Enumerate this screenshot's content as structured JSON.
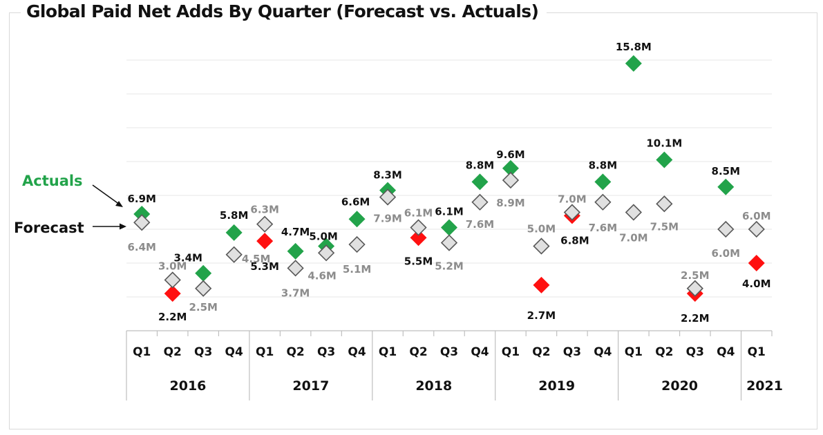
{
  "chart_data": {
    "type": "scatter",
    "title": "Global Paid Net Adds By Quarter (Forecast vs. Actuals)",
    "xlabel": "",
    "ylabel": "",
    "ylim": [
      0,
      16
    ],
    "y_gridlines": [
      2,
      4,
      6,
      8,
      10,
      12,
      14,
      16
    ],
    "grid": true,
    "y_axis_labels_visible": false,
    "x_groups": [
      {
        "year": "2016",
        "quarters": [
          "Q1",
          "Q2",
          "Q3",
          "Q4"
        ]
      },
      {
        "year": "2017",
        "quarters": [
          "Q1",
          "Q2",
          "Q3",
          "Q4"
        ]
      },
      {
        "year": "2018",
        "quarters": [
          "Q1",
          "Q2",
          "Q3",
          "Q4"
        ]
      },
      {
        "year": "2019",
        "quarters": [
          "Q1",
          "Q2",
          "Q3",
          "Q4"
        ]
      },
      {
        "year": "2020",
        "quarters": [
          "Q1",
          "Q2",
          "Q3",
          "Q4"
        ]
      },
      {
        "year": "2021",
        "quarters": [
          "Q1"
        ]
      }
    ],
    "categories": [
      "Q1 2016",
      "Q2 2016",
      "Q3 2016",
      "Q4 2016",
      "Q1 2017",
      "Q2 2017",
      "Q3 2017",
      "Q4 2017",
      "Q1 2018",
      "Q2 2018",
      "Q3 2018",
      "Q4 2018",
      "Q1 2019",
      "Q2 2019",
      "Q3 2019",
      "Q4 2019",
      "Q1 2020",
      "Q2 2020",
      "Q3 2020",
      "Q4 2020",
      "Q1 2021"
    ],
    "series": [
      {
        "name": "Forecast",
        "unit": "M",
        "marker": "hollow-diamond",
        "color": "#e0e0e0",
        "edge_color": "#595959",
        "label_color": "#8c8c8c",
        "values": [
          6.4,
          3.0,
          2.5,
          4.5,
          6.3,
          3.7,
          4.6,
          5.1,
          7.9,
          6.1,
          5.2,
          7.6,
          8.9,
          5.0,
          7.0,
          7.6,
          7.0,
          7.5,
          2.5,
          6.0,
          6.0
        ],
        "labels": [
          "6.4M",
          "3.0M",
          "2.5M",
          "4.5M",
          "6.3M",
          "3.7M",
          "4.6M",
          "5.1M",
          "7.9M",
          "6.1M",
          "5.2M",
          "7.6M",
          "8.9M",
          "5.0M",
          "7.0M",
          "7.6M",
          "7.0M",
          "7.5M",
          "2.5M",
          "6.0M",
          "6.0M"
        ]
      },
      {
        "name": "Actuals",
        "unit": "M",
        "marker": "filled-diamond",
        "color_beat": "#22a34a",
        "color_miss": "#ff1010",
        "label_color": "#111111",
        "values": [
          6.9,
          2.2,
          3.4,
          5.8,
          5.3,
          4.7,
          5.0,
          6.6,
          8.3,
          5.5,
          6.1,
          8.8,
          9.6,
          2.7,
          6.8,
          8.8,
          15.8,
          10.1,
          2.2,
          8.5,
          4.0
        ],
        "labels": [
          "6.9M",
          "2.2M",
          "3.4M",
          "5.8M",
          "5.3M",
          "4.7M",
          "5.0M",
          "6.6M",
          "8.3M",
          "5.5M",
          "6.1M",
          "8.8M",
          "9.6M",
          "2.7M",
          "6.8M",
          "8.8M",
          "15.8M",
          "10.1M",
          "2.2M",
          "8.5M",
          "4.0M"
        ],
        "status": [
          "beat",
          "miss",
          "beat",
          "beat",
          "miss",
          "beat",
          "beat",
          "beat",
          "beat",
          "miss",
          "beat",
          "beat",
          "beat",
          "miss",
          "miss",
          "beat",
          "beat",
          "beat",
          "miss",
          "beat",
          "miss"
        ]
      }
    ],
    "annotations": [
      {
        "text": "Actuals",
        "color": "#22a34a",
        "points_to": "Actuals Q1 2016"
      },
      {
        "text": "Forecast",
        "color": "#111111",
        "points_to": "Forecast Q1 2016"
      }
    ],
    "legend": "none (inline annotations at left)"
  }
}
